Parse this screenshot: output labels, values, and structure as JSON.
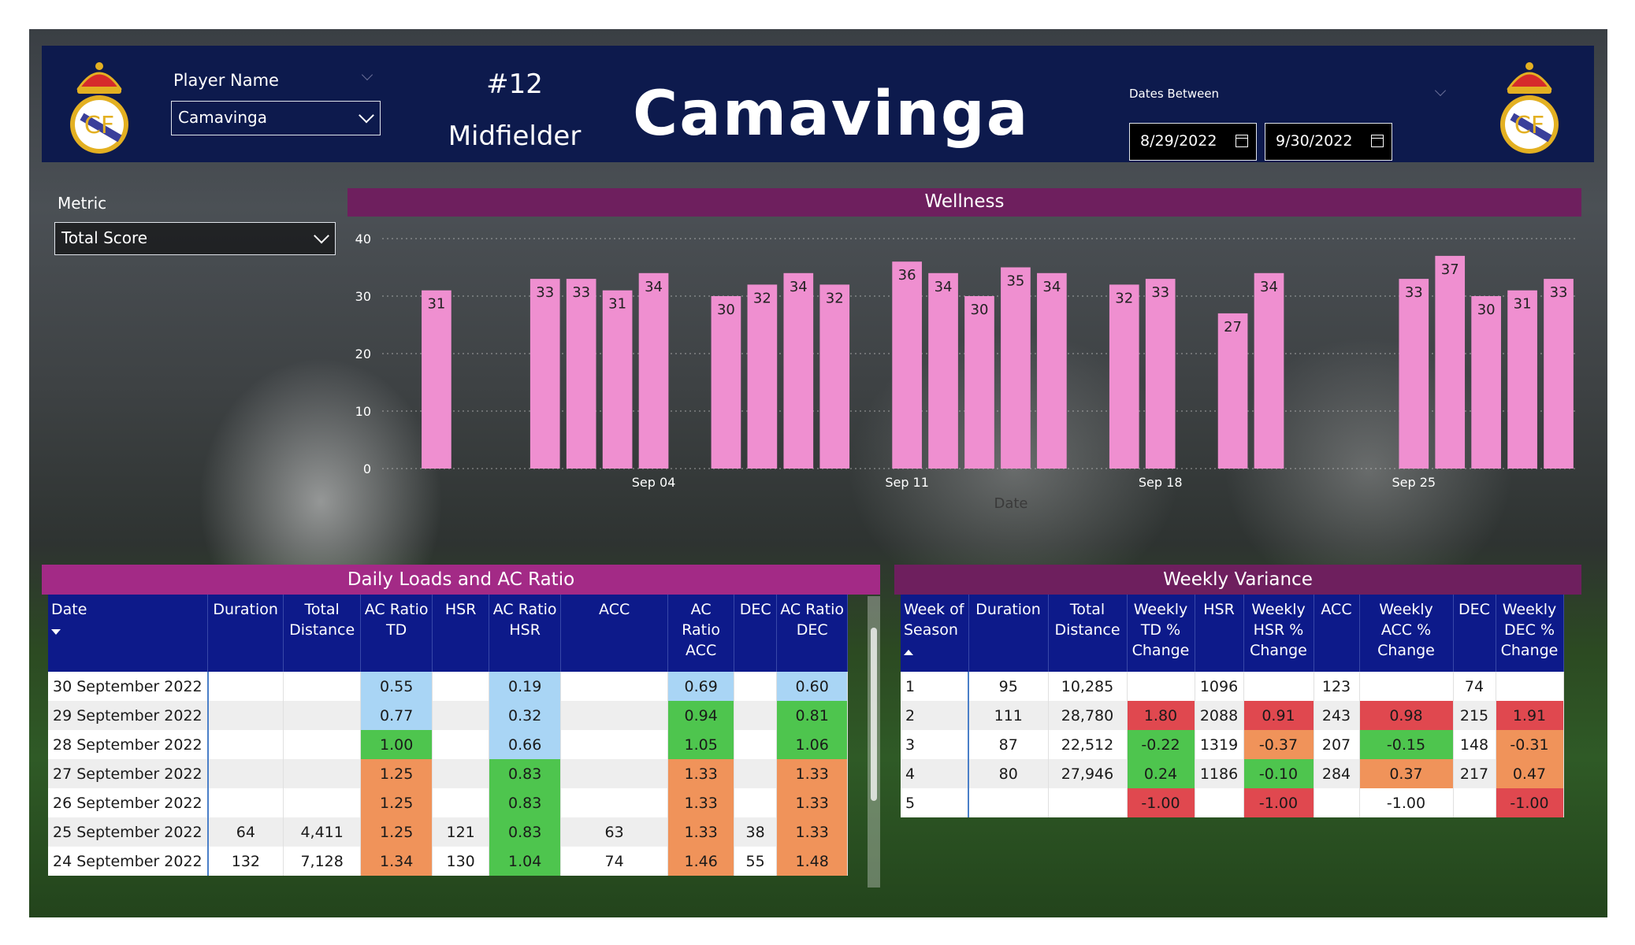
{
  "header": {
    "player_label": "Player Name",
    "player_value": "Camavinga",
    "number": "#12",
    "position": "Midfielder",
    "title": "Camavinga",
    "dates_label": "Dates Between",
    "date_from": "8/29/2022",
    "date_to": "9/30/2022"
  },
  "metric": {
    "label": "Metric",
    "value": "Total Score"
  },
  "wellness": {
    "title": "Wellness",
    "chart_data": {
      "type": "bar",
      "title": "Wellness",
      "xlabel": "Date",
      "ylabel": "",
      "ylim": [
        0,
        40
      ],
      "yticks": [
        0,
        10,
        20,
        30,
        40
      ],
      "x_ticks": [
        "Sep 04",
        "Sep 11",
        "Sep 18",
        "Sep 25"
      ],
      "bar_color": "#ef8fd0",
      "dates": [
        "2022-08-29",
        "2022-09-01",
        "2022-09-02",
        "2022-09-03",
        "2022-09-04",
        "2022-09-06",
        "2022-09-07",
        "2022-09-08",
        "2022-09-09",
        "2022-09-11",
        "2022-09-12",
        "2022-09-13",
        "2022-09-14",
        "2022-09-15",
        "2022-09-17",
        "2022-09-18",
        "2022-09-20",
        "2022-09-21",
        "2022-09-25",
        "2022-09-26",
        "2022-09-27",
        "2022-09-28",
        "2022-09-29"
      ],
      "values": [
        31,
        33,
        33,
        31,
        34,
        30,
        32,
        34,
        32,
        36,
        34,
        30,
        35,
        34,
        32,
        33,
        27,
        34,
        33,
        37,
        30,
        31,
        33
      ]
    }
  },
  "daily": {
    "title": "Daily Loads and AC Ratio",
    "columns": [
      "Date",
      "Duration",
      "Total Distance",
      "AC Ratio TD",
      "HSR",
      "AC Ratio HSR",
      "ACC",
      "AC Ratio ACC",
      "DEC",
      "AC Ratio DEC"
    ],
    "rows": [
      [
        "30 September 2022",
        "",
        "",
        "0.55",
        "",
        "0.19",
        "",
        "0.69",
        "",
        "0.60"
      ],
      [
        "29 September 2022",
        "",
        "",
        "0.77",
        "",
        "0.32",
        "",
        "0.94",
        "",
        "0.81"
      ],
      [
        "28 September 2022",
        "",
        "",
        "1.00",
        "",
        "0.66",
        "",
        "1.05",
        "",
        "1.06"
      ],
      [
        "27 September 2022",
        "",
        "",
        "1.25",
        "",
        "0.83",
        "",
        "1.33",
        "",
        "1.33"
      ],
      [
        "26 September 2022",
        "",
        "",
        "1.25",
        "",
        "0.83",
        "",
        "1.33",
        "",
        "1.33"
      ],
      [
        "25 September 2022",
        "64",
        "4,411",
        "1.25",
        "121",
        "0.83",
        "63",
        "1.33",
        "38",
        "1.33"
      ],
      [
        "24 September 2022",
        "132",
        "7,128",
        "1.34",
        "130",
        "1.04",
        "74",
        "1.46",
        "55",
        "1.48"
      ]
    ],
    "cell_colors": [
      [
        "",
        "",
        "",
        "blue",
        "",
        "blue",
        "",
        "blue",
        "",
        "blue"
      ],
      [
        "",
        "",
        "",
        "blue",
        "",
        "blue",
        "",
        "green",
        "",
        "green"
      ],
      [
        "",
        "",
        "",
        "green",
        "",
        "blue",
        "",
        "green",
        "",
        "green"
      ],
      [
        "",
        "",
        "",
        "orange",
        "",
        "green",
        "",
        "orange",
        "",
        "orange"
      ],
      [
        "",
        "",
        "",
        "orange",
        "",
        "green",
        "",
        "orange",
        "",
        "orange"
      ],
      [
        "",
        "",
        "",
        "orange",
        "",
        "green",
        "",
        "orange",
        "",
        "orange"
      ],
      [
        "",
        "",
        "",
        "orange",
        "",
        "green",
        "",
        "orange",
        "",
        "orange"
      ]
    ]
  },
  "weekly": {
    "title": "Weekly Variance",
    "columns": [
      "Week of Season",
      "Duration",
      "Total Distance",
      "Weekly TD % Change",
      "HSR",
      "Weekly HSR % Change",
      "ACC",
      "Weekly ACC % Change",
      "DEC",
      "Weekly DEC % Change"
    ],
    "rows": [
      [
        "1",
        "95",
        "10,285",
        "",
        "1096",
        "",
        "123",
        "",
        "74",
        ""
      ],
      [
        "2",
        "111",
        "28,780",
        "1.80",
        "2088",
        "0.91",
        "243",
        "0.98",
        "215",
        "1.91"
      ],
      [
        "3",
        "87",
        "22,512",
        "-0.22",
        "1319",
        "-0.37",
        "207",
        "-0.15",
        "148",
        "-0.31"
      ],
      [
        "4",
        "80",
        "27,946",
        "0.24",
        "1186",
        "-0.10",
        "284",
        "0.37",
        "217",
        "0.47"
      ],
      [
        "5",
        "",
        "",
        "-1.00",
        "",
        "-1.00",
        "",
        "-1.00",
        "",
        "-1.00"
      ]
    ],
    "cell_colors": [
      [
        "",
        "",
        "",
        "",
        "",
        "",
        "",
        "",
        "",
        ""
      ],
      [
        "",
        "",
        "",
        "red",
        "",
        "red",
        "",
        "red",
        "",
        "red"
      ],
      [
        "",
        "",
        "",
        "green",
        "",
        "orange",
        "",
        "green",
        "",
        "orange"
      ],
      [
        "",
        "",
        "",
        "green",
        "",
        "green",
        "",
        "orange",
        "",
        "orange"
      ],
      [
        "",
        "",
        "",
        "red",
        "",
        "red",
        "",
        "",
        "",
        "red"
      ]
    ]
  },
  "colors": {
    "header_bg": "#0d1a4d",
    "wellness_title_bg": "#6e1f5e",
    "daily_title_bg": "#a32a86",
    "weekly_title_bg": "#6e1f5e",
    "table_header_bg": "#0d1a8a"
  }
}
